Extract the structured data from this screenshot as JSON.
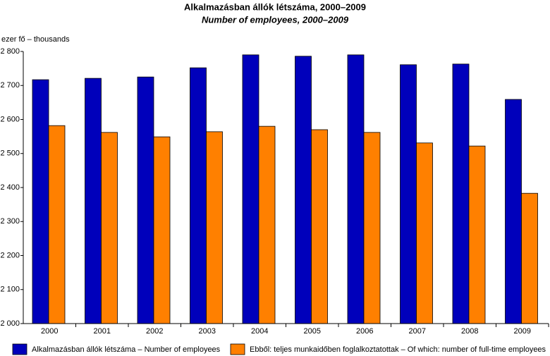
{
  "chart_data": {
    "type": "bar",
    "title": "Alkalmazásban állók létszáma, 2000–2009",
    "subtitle": "Number of employees, 2000–2009",
    "y_label": "ezer fő – thousands",
    "categories": [
      "2000",
      "2001",
      "2002",
      "2003",
      "2004",
      "2005",
      "2006",
      "2007",
      "2008",
      "2009"
    ],
    "series": [
      {
        "name": "Alkalmazásban állók létszáma – Number of employees",
        "color": "#0000bb",
        "values": [
          2717,
          2721,
          2725,
          2752,
          2790,
          2786,
          2790,
          2761,
          2763,
          2659
        ]
      },
      {
        "name": "Ebből: teljes munkaidőben foglalkoztatottak – Of which: number of full-time employees",
        "color": "#ff8000",
        "values": [
          2582,
          2562,
          2549,
          2564,
          2580,
          2570,
          2562,
          2531,
          2522,
          2383
        ]
      }
    ],
    "ylim": [
      2000,
      2800
    ],
    "yticks": [
      {
        "value": 2000,
        "label": "2 000"
      },
      {
        "value": 2100,
        "label": "2 100"
      },
      {
        "value": 2200,
        "label": "2 200"
      },
      {
        "value": 2300,
        "label": "2 300"
      },
      {
        "value": 2400,
        "label": "2 400"
      },
      {
        "value": 2500,
        "label": "2 500"
      },
      {
        "value": 2600,
        "label": "2 600"
      },
      {
        "value": 2700,
        "label": "2 700"
      },
      {
        "value": 2800,
        "label": "2 800"
      }
    ],
    "grid": false,
    "legend": "bottom"
  }
}
